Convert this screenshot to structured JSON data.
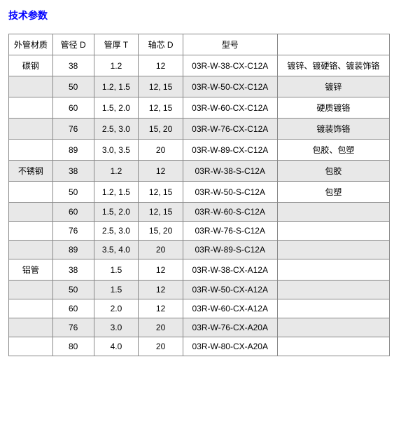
{
  "title": "技术参数",
  "headers": {
    "material": "外管材质",
    "diameter": "管径 D",
    "thickness": "管厚 T",
    "core": "轴芯 D",
    "model": "型号",
    "finish": ""
  },
  "rows": [
    {
      "material": "碳钢",
      "diameter": "38",
      "thickness": "1.2",
      "core": "12",
      "model": "03R-W-38-CX-C12A",
      "finish": "镀锌、镀硬铬、镀装饰铬",
      "alt": false
    },
    {
      "material": "",
      "diameter": "50",
      "thickness": "1.2, 1.5",
      "core": "12, 15",
      "model": "03R-W-50-CX-C12A",
      "finish": "镀锌",
      "alt": true
    },
    {
      "material": "",
      "diameter": "60",
      "thickness": "1.5, 2.0",
      "core": "12, 15",
      "model": "03R-W-60-CX-C12A",
      "finish": "硬质镀铬",
      "alt": false
    },
    {
      "material": "",
      "diameter": "76",
      "thickness": "2.5, 3.0",
      "core": "15, 20",
      "model": "03R-W-76-CX-C12A",
      "finish": "镀装饰铬",
      "alt": true
    },
    {
      "material": "",
      "diameter": "89",
      "thickness": "3.0, 3.5",
      "core": "20",
      "model": "03R-W-89-CX-C12A",
      "finish": "包胶、包塑",
      "alt": false
    },
    {
      "material": "不锈钢",
      "diameter": "38",
      "thickness": "1.2",
      "core": "12",
      "model": "03R-W-38-S-C12A",
      "finish": "包胶",
      "alt": true
    },
    {
      "material": "",
      "diameter": "50",
      "thickness": "1.2, 1.5",
      "core": "12, 15",
      "model": "03R-W-50-S-C12A",
      "finish": "包塑",
      "alt": false
    },
    {
      "material": "",
      "diameter": "60",
      "thickness": "1.5, 2.0",
      "core": "12, 15",
      "model": "03R-W-60-S-C12A",
      "finish": "",
      "alt": true
    },
    {
      "material": "",
      "diameter": "76",
      "thickness": "2.5, 3.0",
      "core": "15, 20",
      "model": "03R-W-76-S-C12A",
      "finish": "",
      "alt": false
    },
    {
      "material": "",
      "diameter": "89",
      "thickness": "3.5, 4.0",
      "core": "20",
      "model": "03R-W-89-S-C12A",
      "finish": "",
      "alt": true
    },
    {
      "material": "铝管",
      "diameter": "38",
      "thickness": "1.5",
      "core": "12",
      "model": "03R-W-38-CX-A12A",
      "finish": "",
      "alt": false
    },
    {
      "material": "",
      "diameter": "50",
      "thickness": "1.5",
      "core": "12",
      "model": "03R-W-50-CX-A12A",
      "finish": "",
      "alt": true
    },
    {
      "material": "",
      "diameter": "60",
      "thickness": "2.0",
      "core": "12",
      "model": "03R-W-60-CX-A12A",
      "finish": "",
      "alt": false
    },
    {
      "material": "",
      "diameter": "76",
      "thickness": "3.0",
      "core": "20",
      "model": "03R-W-76-CX-A20A",
      "finish": "",
      "alt": true
    },
    {
      "material": "",
      "diameter": "80",
      "thickness": "4.0",
      "core": "20",
      "model": "03R-W-80-CX-A20A",
      "finish": "",
      "alt": false
    }
  ]
}
